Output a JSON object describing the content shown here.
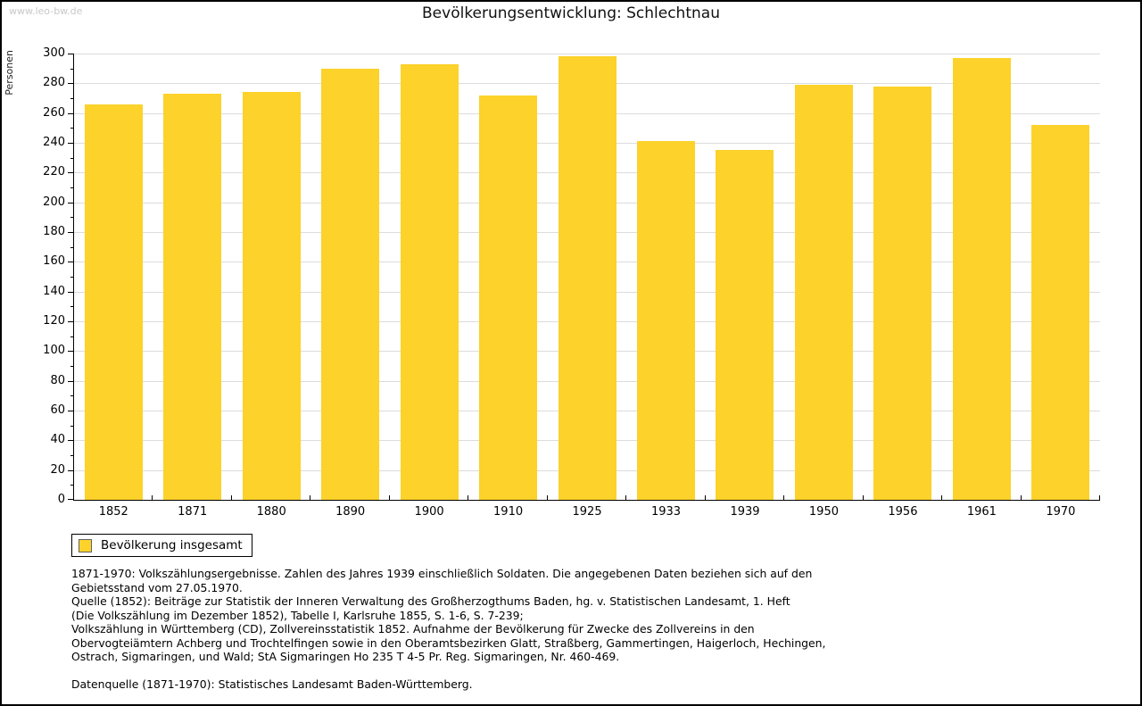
{
  "watermark": "www.leo-bw.de",
  "title": "Bevölkerungsentwicklung: Schlechtnau",
  "chart_data": {
    "type": "bar",
    "title": "Bevölkerungsentwicklung: Schlechtnau",
    "categories": [
      "1852",
      "1871",
      "1880",
      "1890",
      "1900",
      "1910",
      "1925",
      "1933",
      "1939",
      "1950",
      "1956",
      "1961",
      "1970"
    ],
    "values": [
      266,
      273,
      274,
      290,
      293,
      272,
      298,
      241,
      235,
      279,
      278,
      297,
      252
    ],
    "xlabel": "",
    "ylabel": "Personen",
    "ylim": [
      0,
      300
    ],
    "ytick_major_step": 20,
    "ytick_minor_step": 10,
    "grid": true,
    "bar_color": "#fcd22b",
    "legend_position": "bottom-left",
    "legend_entries": [
      "Bevölkerung insgesamt"
    ]
  },
  "legend": {
    "label": "Bevölkerung insgesamt",
    "swatch_color": "#fcd22b"
  },
  "footer": {
    "lines": [
      "1871-1970: Volkszählungsergebnisse. Zahlen des Jahres 1939 einschließlich Soldaten. Die angegebenen Daten beziehen sich auf den",
      "Gebietsstand vom 27.05.1970.",
      "Quelle (1852): Beiträge zur Statistik der Inneren Verwaltung des Großherzogthums Baden, hg. v. Statistischen Landesamt, 1. Heft",
      "(Die Volkszählung im Dezember 1852), Tabelle I, Karlsruhe 1855, S. 1-6, S. 7-239;",
      "Volkszählung in Württemberg (CD), Zollvereinsstatistik 1852. Aufnahme der Bevölkerung für Zwecke des Zollvereins in den",
      "Obervogteiämtern Achberg und Trochtelfingen sowie in den Oberamtsbezirken Glatt, Straßberg, Gammertingen, Haigerloch, Hechingen,",
      "Ostrach, Sigmaringen, und Wald; StA Sigmaringen Ho 235 T 4-5 Pr. Reg. Sigmaringen, Nr. 460-469.",
      "",
      "Datenquelle (1871-1970): Statistisches Landesamt Baden-Württemberg."
    ]
  },
  "colors": {
    "bar": "#fcd22b",
    "gridline": "#dcdcdc",
    "axis": "#000000",
    "watermark_text": "#c8c8c8"
  }
}
